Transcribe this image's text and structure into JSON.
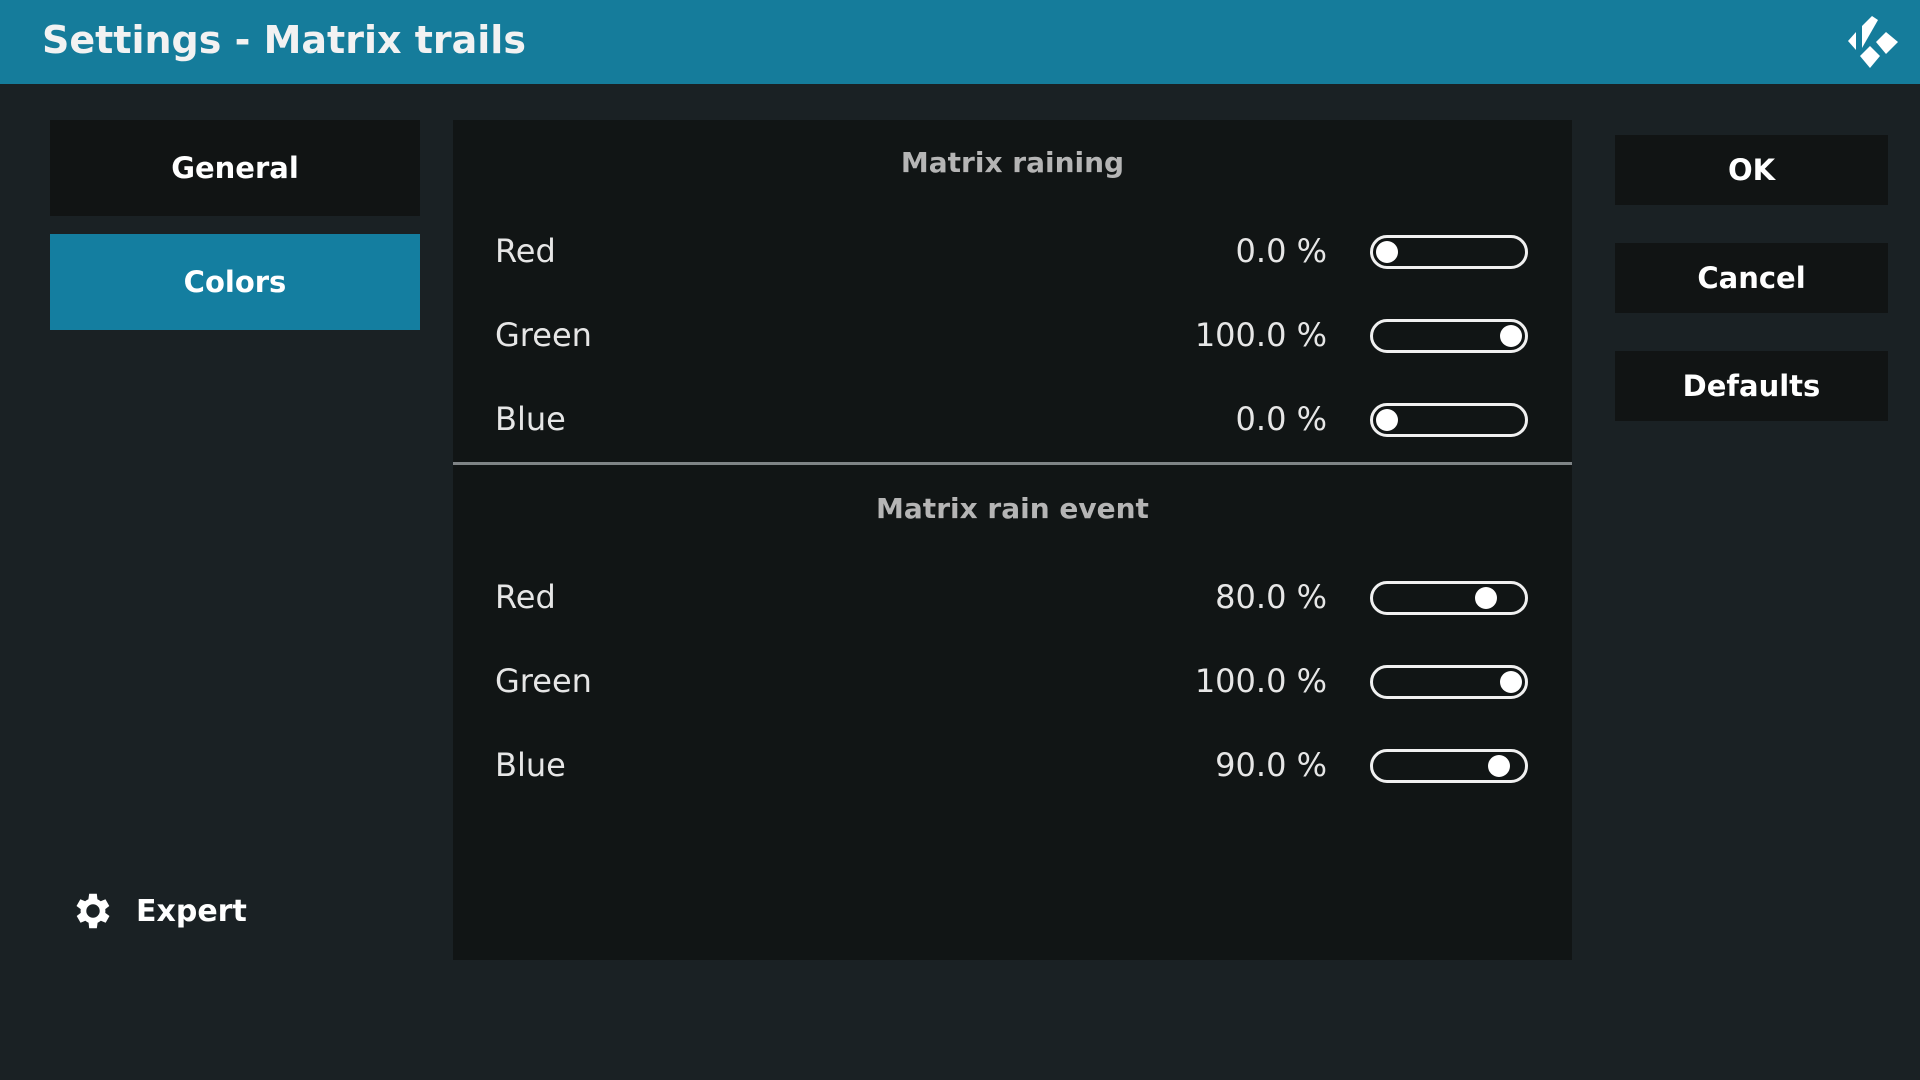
{
  "header": {
    "title": "Settings - Matrix trails",
    "logo": "kodi-logo"
  },
  "sidebar": {
    "items": [
      {
        "label": "General",
        "active": false
      },
      {
        "label": "Colors",
        "active": true
      }
    ],
    "expert_label": "Expert",
    "expert_icon": "gear-icon"
  },
  "sections": [
    {
      "title": "Matrix raining",
      "rows": [
        {
          "label": "Red",
          "value": "0.0 %",
          "percent": 0
        },
        {
          "label": "Green",
          "value": "100.0 %",
          "percent": 100
        },
        {
          "label": "Blue",
          "value": "0.0 %",
          "percent": 0
        }
      ]
    },
    {
      "title": "Matrix rain event",
      "rows": [
        {
          "label": "Red",
          "value": "80.0 %",
          "percent": 80
        },
        {
          "label": "Green",
          "value": "100.0 %",
          "percent": 100
        },
        {
          "label": "Blue",
          "value": "90.0 %",
          "percent": 90
        }
      ]
    }
  ],
  "buttons": {
    "ok": "OK",
    "cancel": "Cancel",
    "defaults": "Defaults"
  },
  "colors": {
    "accent": "#147ea0",
    "header": "#157c9b",
    "background": "#1a2124"
  }
}
